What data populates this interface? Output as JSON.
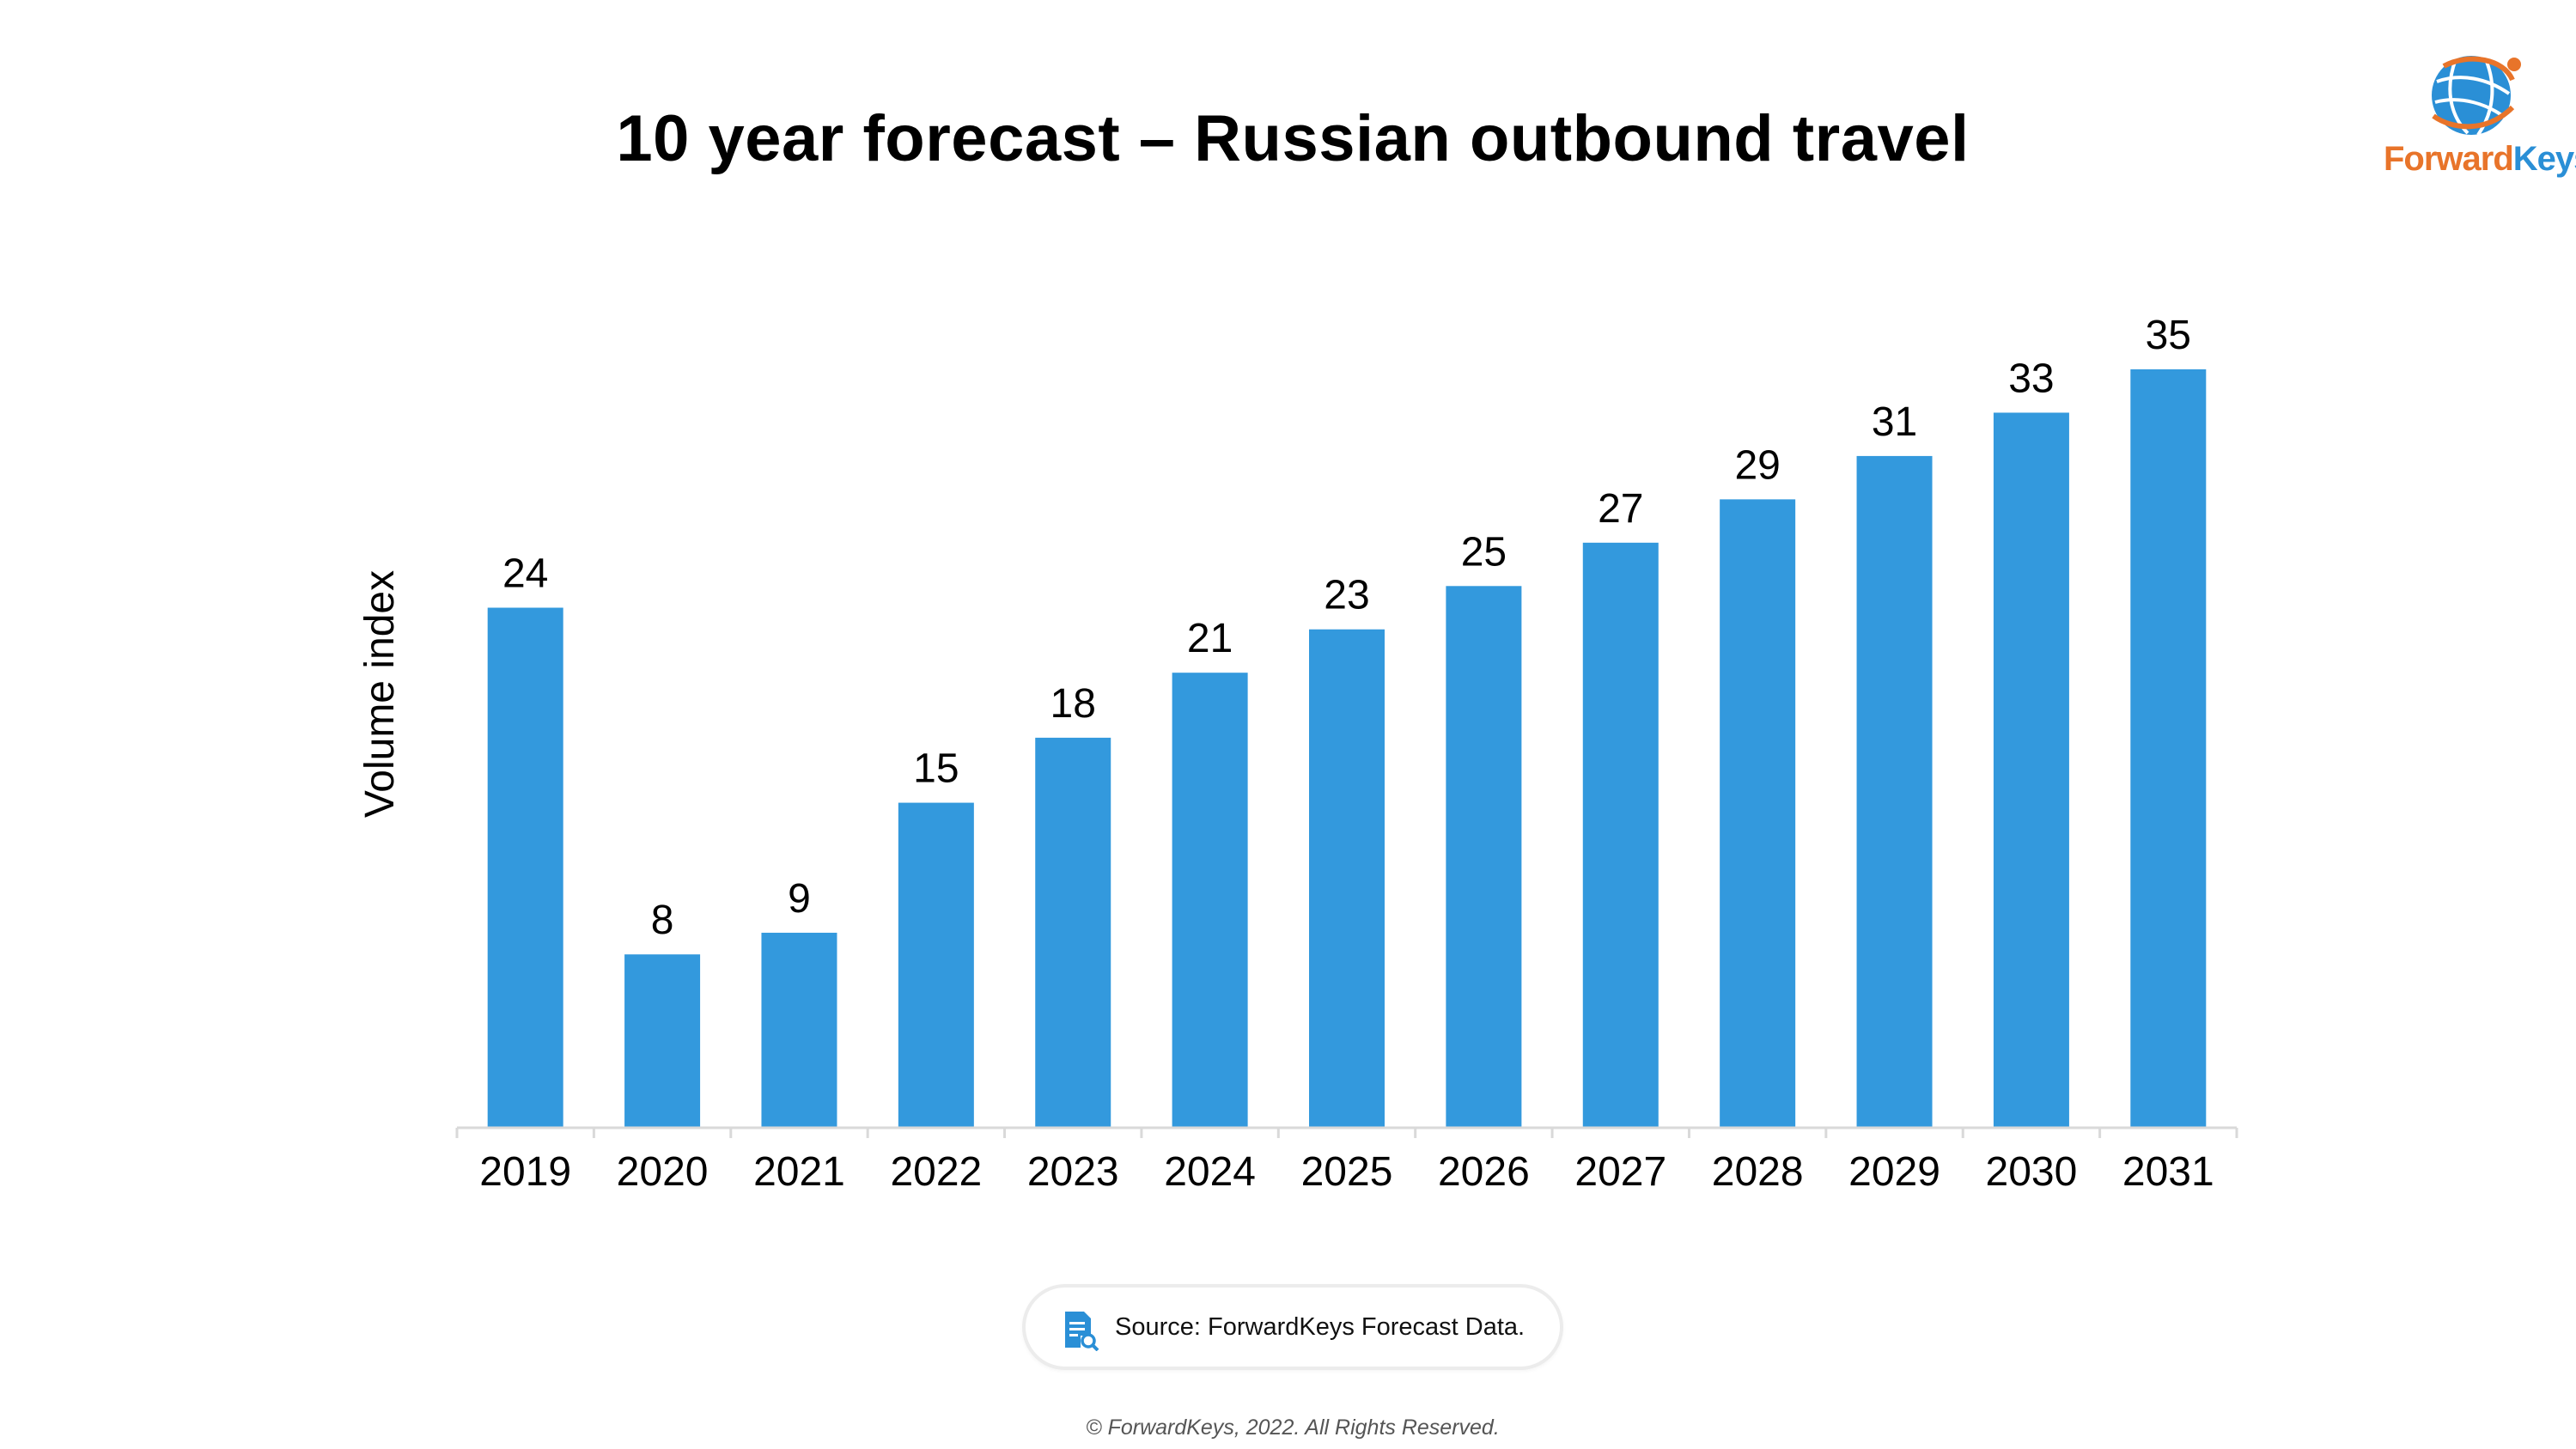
{
  "title": "10 year forecast – Russian outbound travel",
  "logo": {
    "text_orange": "Forward",
    "text_blue": "Keys",
    "orange": "#e8742a",
    "blue": "#2a8fd6",
    "icon": "globe-icon"
  },
  "chart_data": {
    "type": "bar",
    "categories": [
      "2019",
      "2020",
      "2021",
      "2022",
      "2023",
      "2024",
      "2025",
      "2026",
      "2027",
      "2028",
      "2029",
      "2030",
      "2031"
    ],
    "values": [
      24,
      8,
      9,
      15,
      18,
      21,
      23,
      25,
      27,
      29,
      31,
      33,
      35
    ],
    "data_labels": [
      "24",
      "8",
      "9",
      "15",
      "18",
      "21",
      "23",
      "25",
      "27",
      "29",
      "31",
      "33",
      "35"
    ],
    "title": "10 year forecast – Russian outbound travel",
    "xlabel": "",
    "ylabel": "Volume index",
    "ylim": [
      0,
      35
    ],
    "bar_color": "#3399dd",
    "axis_color": "#d9d9d9",
    "grid": false,
    "legend": "none"
  },
  "source": {
    "text": "Source: ForwardKeys Forecast Data.",
    "icon": "document-search-icon",
    "icon_color": "#2a8fd6"
  },
  "copyright": "© ForwardKeys, 2022. All Rights Reserved."
}
